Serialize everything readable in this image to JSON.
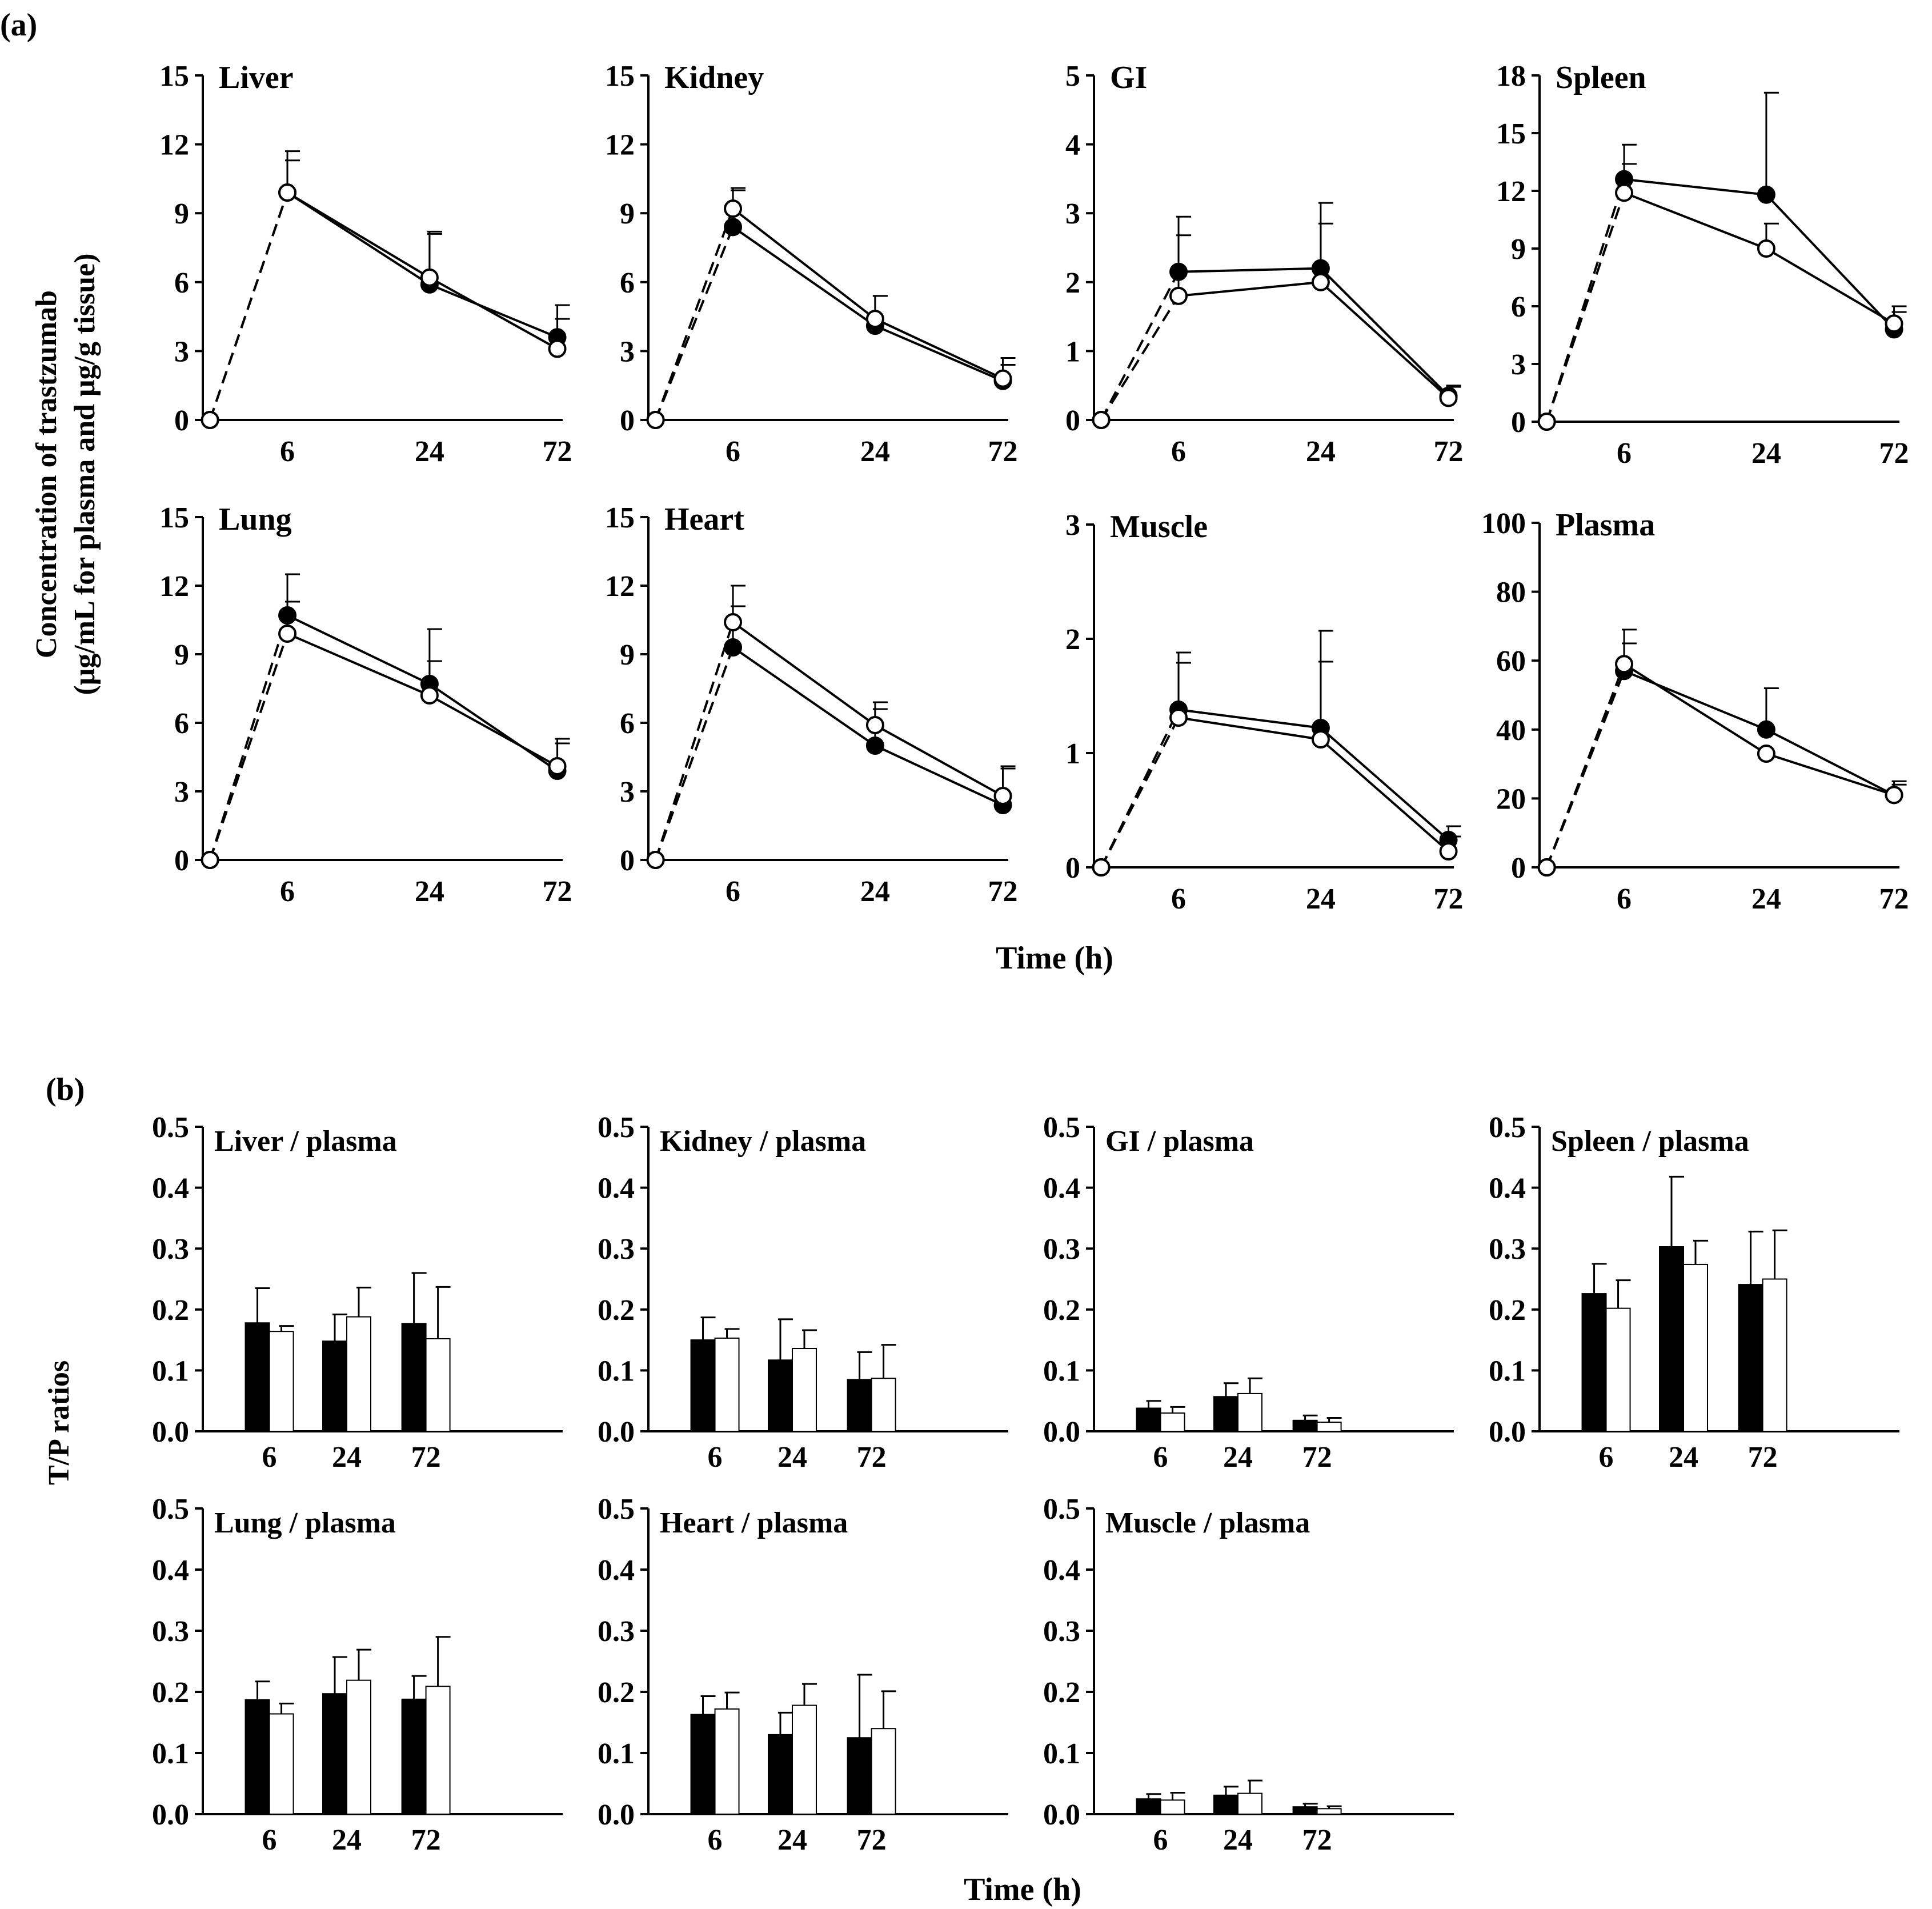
{
  "panel_labels": {
    "a": "(a)",
    "b": "(b)"
  },
  "section_a": {
    "ylabel_line1": "Concentration of trastzumab",
    "ylabel_line2": "(μg/mL for plasma and μg/g tissue)",
    "xlabel": "Time (h)"
  },
  "section_b": {
    "ylabel": "T/P ratios",
    "xlabel": "Time (h)"
  },
  "chart_data": [
    {
      "type": "line",
      "title": "Liver",
      "categories": [
        "0",
        "6",
        "24",
        "72"
      ],
      "x_tick_labels": [
        "6",
        "24",
        "72"
      ],
      "ylim": [
        0,
        15
      ],
      "yticks": [
        "0",
        "3",
        "6",
        "9",
        "12",
        "15"
      ],
      "series": [
        {
          "marker": "filled",
          "values": [
            0,
            9.9,
            5.9,
            3.6
          ],
          "err": [
            0,
            1.8,
            2.3,
            1.4
          ]
        },
        {
          "marker": "open",
          "values": [
            0,
            9.9,
            6.2,
            3.1
          ],
          "err": [
            0,
            1.4,
            1.9,
            1.3
          ]
        }
      ]
    },
    {
      "type": "line",
      "title": "Kidney",
      "categories": [
        "0",
        "6",
        "24",
        "72"
      ],
      "x_tick_labels": [
        "6",
        "24",
        "72"
      ],
      "ylim": [
        0,
        15
      ],
      "yticks": [
        "0",
        "3",
        "6",
        "9",
        "12",
        "15"
      ],
      "series": [
        {
          "marker": "filled",
          "values": [
            0,
            8.4,
            4.1,
            1.7
          ],
          "err": [
            0,
            1.7,
            1.3,
            1.0
          ]
        },
        {
          "marker": "open",
          "values": [
            0,
            9.2,
            4.4,
            1.8
          ],
          "err": [
            0,
            0.8,
            1.0,
            0.6
          ]
        }
      ]
    },
    {
      "type": "line",
      "title": "GI",
      "categories": [
        "0",
        "6",
        "24",
        "72"
      ],
      "x_tick_labels": [
        "6",
        "24",
        "72"
      ],
      "ylim": [
        0,
        5
      ],
      "yticks": [
        "0",
        "1",
        "2",
        "3",
        "4",
        "5"
      ],
      "series": [
        {
          "marker": "filled",
          "values": [
            0,
            2.15,
            2.2,
            0.35
          ],
          "err": [
            0,
            0.8,
            0.95,
            0.15
          ]
        },
        {
          "marker": "open",
          "values": [
            0,
            1.8,
            2.0,
            0.32
          ],
          "err": [
            0,
            0.88,
            0.85,
            0.16
          ]
        }
      ]
    },
    {
      "type": "line",
      "title": "Spleen",
      "categories": [
        "0",
        "6",
        "24",
        "72"
      ],
      "x_tick_labels": [
        "6",
        "24",
        "72"
      ],
      "ylim": [
        0,
        18
      ],
      "yticks": [
        "0",
        "3",
        "6",
        "9",
        "12",
        "15",
        "18"
      ],
      "series": [
        {
          "marker": "filled",
          "values": [
            0,
            12.6,
            11.8,
            4.8
          ],
          "err": [
            0,
            1.8,
            5.3,
            1.2
          ]
        },
        {
          "marker": "open",
          "values": [
            0,
            11.9,
            9.0,
            5.1
          ],
          "err": [
            0,
            1.5,
            1.3,
            0.6
          ]
        }
      ]
    },
    {
      "type": "line",
      "title": "Lung",
      "categories": [
        "0",
        "6",
        "24",
        "72"
      ],
      "x_tick_labels": [
        "6",
        "24",
        "72"
      ],
      "ylim": [
        0,
        15
      ],
      "yticks": [
        "0",
        "3",
        "6",
        "9",
        "12",
        "15"
      ],
      "series": [
        {
          "marker": "filled",
          "values": [
            0,
            10.7,
            7.7,
            3.9
          ],
          "err": [
            0,
            1.8,
            2.4,
            1.4
          ]
        },
        {
          "marker": "open",
          "values": [
            0,
            9.9,
            7.2,
            4.1
          ],
          "err": [
            0,
            1.4,
            1.5,
            1.0
          ]
        }
      ]
    },
    {
      "type": "line",
      "title": "Heart",
      "categories": [
        "0",
        "6",
        "24",
        "72"
      ],
      "x_tick_labels": [
        "6",
        "24",
        "72"
      ],
      "ylim": [
        0,
        15
      ],
      "yticks": [
        "0",
        "3",
        "6",
        "9",
        "12",
        "15"
      ],
      "series": [
        {
          "marker": "filled",
          "values": [
            0,
            9.3,
            5.0,
            2.4
          ],
          "err": [
            0,
            1.8,
            1.6,
            1.7
          ]
        },
        {
          "marker": "open",
          "values": [
            0,
            10.4,
            5.9,
            2.8
          ],
          "err": [
            0,
            1.6,
            1.0,
            1.2
          ]
        }
      ]
    },
    {
      "type": "line",
      "title": "Muscle",
      "categories": [
        "0",
        "6",
        "24",
        "72"
      ],
      "x_tick_labels": [
        "6",
        "24",
        "72"
      ],
      "ylim": [
        0,
        3
      ],
      "yticks": [
        "0",
        "1",
        "2",
        "3"
      ],
      "series": [
        {
          "marker": "filled",
          "values": [
            0,
            1.38,
            1.22,
            0.24
          ],
          "err": [
            0,
            0.5,
            0.85,
            0.12
          ]
        },
        {
          "marker": "open",
          "values": [
            0,
            1.31,
            1.12,
            0.14
          ],
          "err": [
            0,
            0.48,
            0.68,
            0.13
          ]
        }
      ]
    },
    {
      "type": "line",
      "title": "Plasma",
      "categories": [
        "0",
        "6",
        "24",
        "72"
      ],
      "x_tick_labels": [
        "6",
        "24",
        "72"
      ],
      "ylim": [
        0,
        100
      ],
      "yticks": [
        "0",
        "20",
        "40",
        "60",
        "80",
        "100"
      ],
      "series": [
        {
          "marker": "filled",
          "values": [
            0,
            57,
            40,
            21
          ],
          "err": [
            0,
            12,
            12,
            4
          ]
        },
        {
          "marker": "open",
          "values": [
            0,
            59,
            33,
            21
          ],
          "err": [
            0,
            6,
            0,
            3
          ]
        }
      ]
    },
    {
      "type": "bar",
      "title": "Liver / plasma",
      "categories": [
        "6",
        "24",
        "72"
      ],
      "ylim": [
        0,
        0.5
      ],
      "yticks": [
        "0.0",
        "0.1",
        "0.2",
        "0.3",
        "0.4",
        "0.5"
      ],
      "series": [
        {
          "fill": "black",
          "values": [
            0.178,
            0.148,
            0.177
          ],
          "err": [
            0.057,
            0.044,
            0.083
          ]
        },
        {
          "fill": "white",
          "values": [
            0.164,
            0.188,
            0.152
          ],
          "err": [
            0.009,
            0.048,
            0.085
          ]
        }
      ]
    },
    {
      "type": "bar",
      "title": "Kidney / plasma",
      "categories": [
        "6",
        "24",
        "72"
      ],
      "ylim": [
        0,
        0.5
      ],
      "yticks": [
        "0.0",
        "0.1",
        "0.2",
        "0.3",
        "0.4",
        "0.5"
      ],
      "series": [
        {
          "fill": "black",
          "values": [
            0.15,
            0.117,
            0.085
          ],
          "err": [
            0.037,
            0.067,
            0.045
          ]
        },
        {
          "fill": "white",
          "values": [
            0.153,
            0.136,
            0.087
          ],
          "err": [
            0.015,
            0.03,
            0.055
          ]
        }
      ]
    },
    {
      "type": "bar",
      "title": "GI / plasma",
      "categories": [
        "6",
        "24",
        "72"
      ],
      "ylim": [
        0,
        0.5
      ],
      "yticks": [
        "0.0",
        "0.1",
        "0.2",
        "0.3",
        "0.4",
        "0.5"
      ],
      "series": [
        {
          "fill": "black",
          "values": [
            0.038,
            0.057,
            0.018
          ],
          "err": [
            0.012,
            0.022,
            0.008
          ]
        },
        {
          "fill": "white",
          "values": [
            0.03,
            0.062,
            0.015
          ],
          "err": [
            0.01,
            0.025,
            0.007
          ]
        }
      ]
    },
    {
      "type": "bar",
      "title": "Spleen / plasma",
      "categories": [
        "6",
        "24",
        "72"
      ],
      "ylim": [
        0,
        0.5
      ],
      "yticks": [
        "0.0",
        "0.1",
        "0.2",
        "0.3",
        "0.4",
        "0.5"
      ],
      "series": [
        {
          "fill": "black",
          "values": [
            0.226,
            0.303,
            0.241
          ],
          "err": [
            0.049,
            0.115,
            0.087
          ]
        },
        {
          "fill": "white",
          "values": [
            0.202,
            0.274,
            0.25
          ],
          "err": [
            0.046,
            0.039,
            0.08
          ]
        }
      ]
    },
    {
      "type": "bar",
      "title": "Lung / plasma",
      "categories": [
        "6",
        "24",
        "72"
      ],
      "ylim": [
        0,
        0.5
      ],
      "yticks": [
        "0.0",
        "0.1",
        "0.2",
        "0.3",
        "0.4",
        "0.5"
      ],
      "series": [
        {
          "fill": "black",
          "values": [
            0.187,
            0.197,
            0.188
          ],
          "err": [
            0.03,
            0.06,
            0.038
          ]
        },
        {
          "fill": "white",
          "values": [
            0.164,
            0.219,
            0.209
          ],
          "err": [
            0.017,
            0.05,
            0.081
          ]
        }
      ]
    },
    {
      "type": "bar",
      "title": "Heart / plasma",
      "categories": [
        "6",
        "24",
        "72"
      ],
      "ylim": [
        0,
        0.5
      ],
      "yticks": [
        "0.0",
        "0.1",
        "0.2",
        "0.3",
        "0.4",
        "0.5"
      ],
      "series": [
        {
          "fill": "black",
          "values": [
            0.163,
            0.13,
            0.125
          ],
          "err": [
            0.03,
            0.036,
            0.103
          ]
        },
        {
          "fill": "white",
          "values": [
            0.172,
            0.178,
            0.14
          ],
          "err": [
            0.027,
            0.035,
            0.061
          ]
        }
      ]
    },
    {
      "type": "bar",
      "title": "Muscle / plasma",
      "categories": [
        "6",
        "24",
        "72"
      ],
      "ylim": [
        0,
        0.5
      ],
      "yticks": [
        "0.0",
        "0.1",
        "0.2",
        "0.3",
        "0.4",
        "0.5"
      ],
      "series": [
        {
          "fill": "black",
          "values": [
            0.025,
            0.031,
            0.012
          ],
          "err": [
            0.008,
            0.014,
            0.005
          ]
        },
        {
          "fill": "white",
          "values": [
            0.023,
            0.034,
            0.009
          ],
          "err": [
            0.012,
            0.021,
            0.004
          ]
        }
      ]
    }
  ]
}
